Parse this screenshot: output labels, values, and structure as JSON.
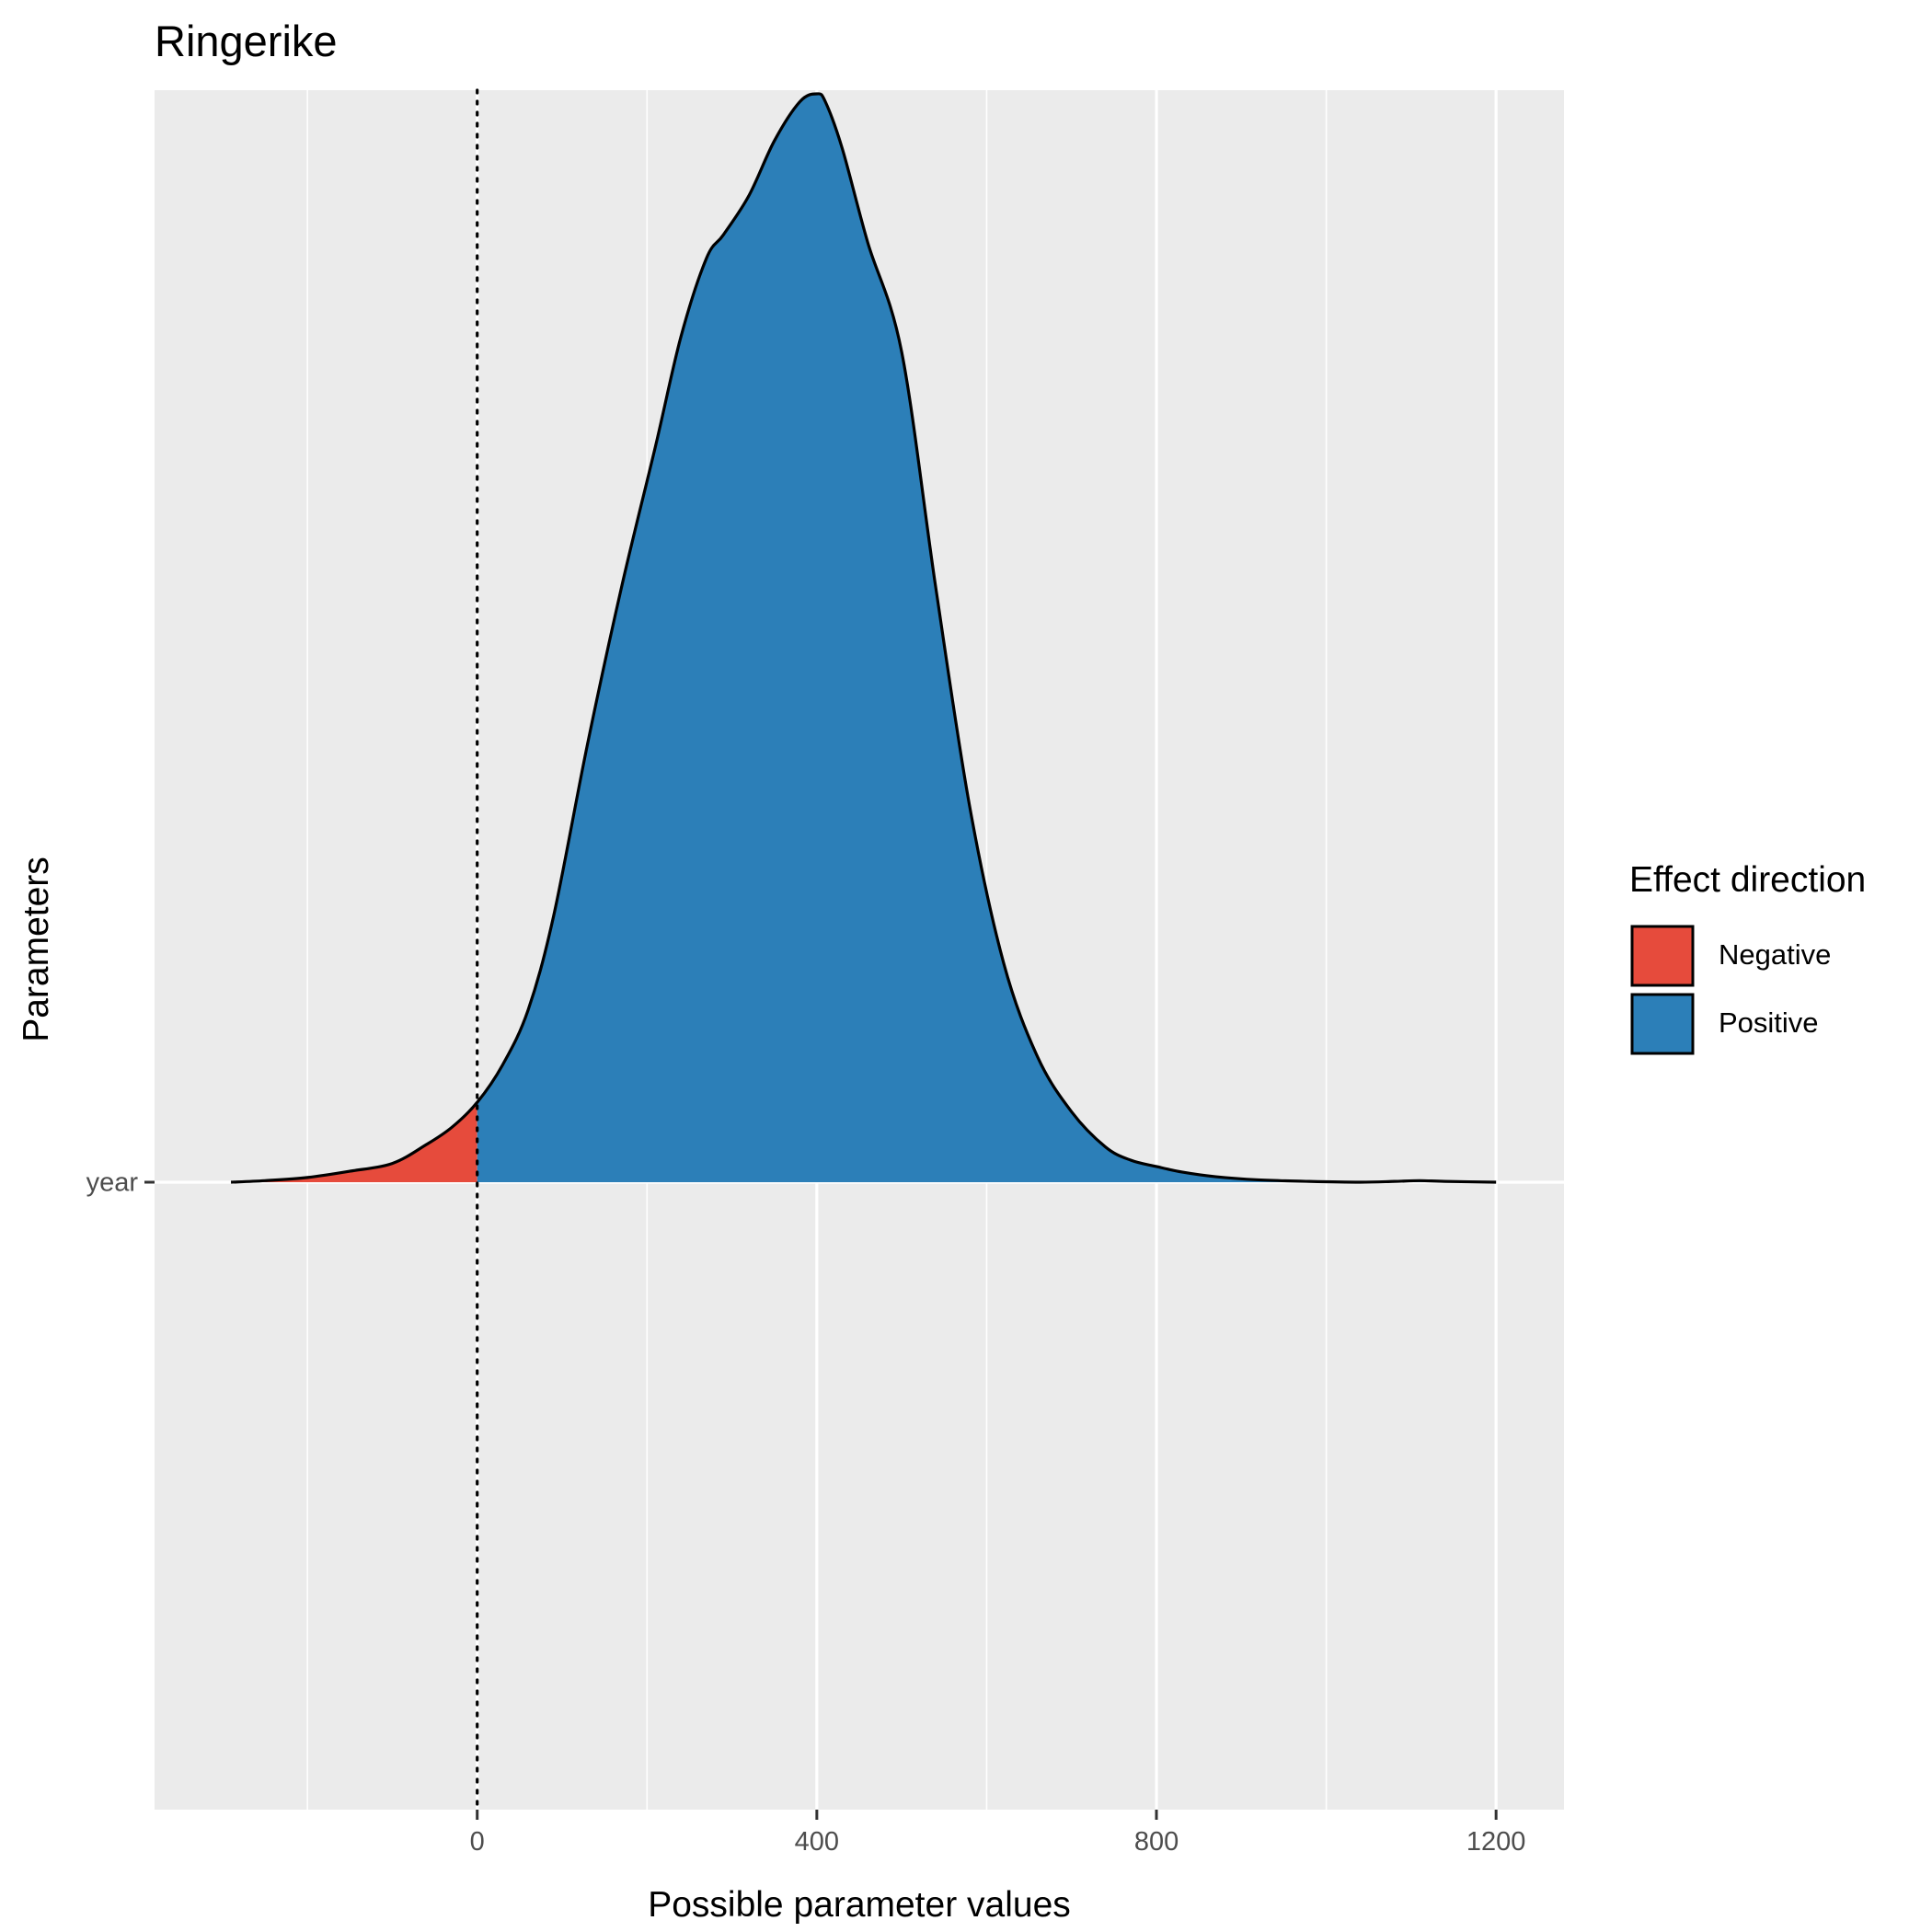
{
  "chart_data": {
    "type": "area",
    "title": "Ringerike",
    "xlabel": "Possible parameter values",
    "ylabel": "Parameters",
    "xlim": [
      -380,
      1280
    ],
    "x_ticks": [
      0,
      400,
      800,
      1200
    ],
    "x_tick_labels": [
      "0",
      "400",
      "800",
      "1200"
    ],
    "y_categories": [
      "year"
    ],
    "reference_line": {
      "x": 0,
      "style": "dotted"
    },
    "grid": true,
    "legend": {
      "title": "Effect direction",
      "position": "right",
      "entries": [
        {
          "label": "Negative",
          "color": "#E64B3C"
        },
        {
          "label": "Positive",
          "color": "#2C7FB8"
        }
      ]
    },
    "density": {
      "category": "year",
      "split_at": 0,
      "x": [
        -290,
        -250,
        -200,
        -150,
        -100,
        -60,
        -30,
        0,
        30,
        60,
        90,
        130,
        170,
        210,
        240,
        270,
        290,
        320,
        350,
        380,
        400,
        410,
        430,
        460,
        500,
        540,
        580,
        620,
        660,
        700,
        740,
        770,
        800,
        830,
        870,
        920,
        980,
        1040,
        1080,
        1110,
        1140,
        1200
      ],
      "y": [
        0.0,
        0.002,
        0.006,
        0.014,
        0.024,
        0.048,
        0.07,
        0.102,
        0.15,
        0.22,
        0.34,
        0.56,
        0.76,
        0.94,
        1.08,
        1.18,
        1.21,
        1.26,
        1.33,
        1.38,
        1.39,
        1.38,
        1.32,
        1.2,
        1.06,
        0.76,
        0.48,
        0.28,
        0.16,
        0.09,
        0.045,
        0.028,
        0.02,
        0.013,
        0.007,
        0.003,
        0.001,
        0.0,
        0.001,
        0.002,
        0.001,
        0.0
      ]
    }
  }
}
